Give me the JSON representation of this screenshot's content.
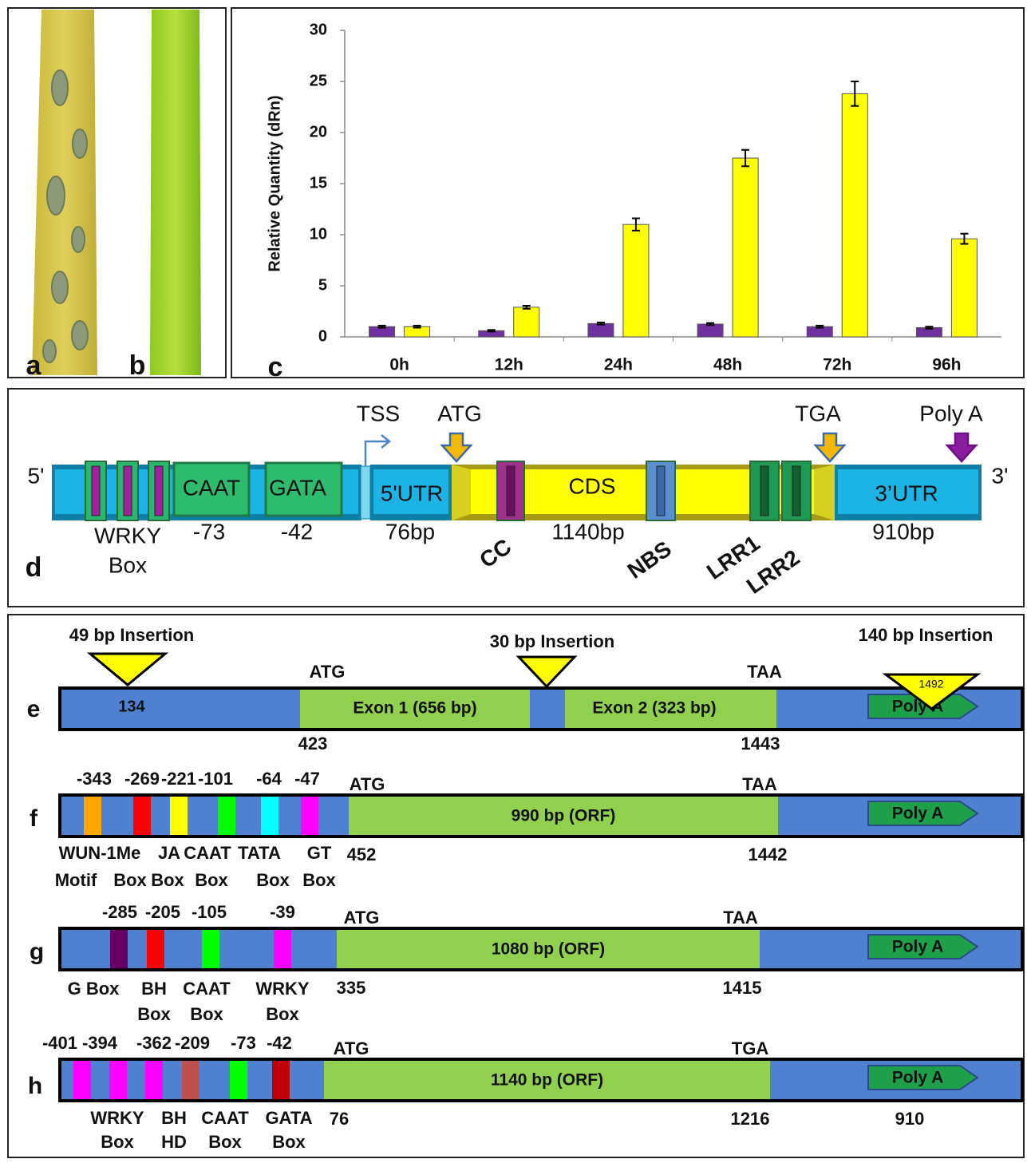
{
  "chart_data": {
    "type": "bar",
    "ylabel": "Relative Quantity (dRn)",
    "categories": [
      "0h",
      "12h",
      "24h",
      "48h",
      "72h",
      "96h"
    ],
    "series": [
      {
        "color": "#7030a0",
        "values": [
          1.0,
          0.6,
          1.3,
          1.25,
          1.0,
          0.9
        ],
        "errors": [
          0.1,
          0.08,
          0.1,
          0.1,
          0.1,
          0.1
        ]
      },
      {
        "color": "#ffff00",
        "values": [
          1.0,
          2.9,
          11.0,
          17.5,
          23.8,
          9.6
        ],
        "errors": [
          0.1,
          0.15,
          0.6,
          0.8,
          1.2,
          0.5
        ]
      }
    ],
    "ylim": [
      0,
      30
    ],
    "yticks": [
      0,
      5,
      10,
      15,
      20,
      25,
      30
    ],
    "grid": false
  },
  "panel_labels": {
    "a": "a",
    "b": "b",
    "c": "c",
    "d": "d",
    "e": "e",
    "f": "f",
    "g": "g",
    "h": "h"
  },
  "panel_d": {
    "end5": "5'",
    "end3": "3'",
    "tss": "TSS",
    "atg": "ATG",
    "tga": "TGA",
    "polya": "Poly A",
    "caat": "CAAT",
    "gata": "GATA",
    "utr5": "5'UTR",
    "cds": "CDS",
    "utr3": "3’UTR",
    "wrky": [
      "WRKY",
      "Box"
    ],
    "pos_caat": "-73",
    "pos_gata": "-42",
    "len_utr5": "76bp",
    "len_cds": "1140bp",
    "len_utr3": "910bp",
    "cc": "CC",
    "nbs": "NBS",
    "lrr1": "LRR1",
    "lrr2": "LRR2"
  },
  "panel_e": {
    "insertions": [
      "49 bp Insertion",
      "30 bp Insertion",
      "140 bp Insertion"
    ],
    "atg": "ATG",
    "stop": "TAA",
    "pos_insertion1": "134",
    "exon1": "Exon 1 (656 bp)",
    "exon2": "Exon 2 (323 bp)",
    "pos_insertion3": "1492",
    "polya": "Poly A",
    "start": "423",
    "end": "1443"
  },
  "panel_f": {
    "motif_positions": [
      "-343",
      "-269",
      "-221",
      "-101",
      "-64",
      "-47"
    ],
    "atg": "ATG",
    "stop": "TAA",
    "orf": "990 bp (ORF)",
    "polya": "Poly A",
    "start": "452",
    "end": "1442",
    "motif_labels": [
      [
        "WUN-1Me",
        "JA",
        "CAAT",
        "TATA",
        "GT"
      ],
      [
        "Motif",
        "Box",
        "Box",
        "Box",
        "Box",
        "Box"
      ]
    ]
  },
  "panel_g": {
    "motif_positions": [
      "-285",
      "-205",
      "-105",
      "-39"
    ],
    "atg": "ATG",
    "stop": "TAA",
    "orf": "1080 bp (ORF)",
    "polya": "Poly A",
    "start": "335",
    "end": "1415",
    "motif_labels": [
      [
        "G Box",
        "BH",
        "CAAT",
        "WRKY"
      ],
      [
        "Box",
        "Box",
        "Box"
      ]
    ]
  },
  "panel_h": {
    "motif_positions": [
      "-401",
      "-394",
      "-362",
      "-209",
      "-73",
      "-42"
    ],
    "atg": "ATG",
    "stop": "TGA",
    "orf": "1140 bp (ORF)",
    "polya": "Poly A",
    "start": "76",
    "end": "1216",
    "utr3": "910",
    "motif_labels": [
      [
        "WRKY",
        "BH",
        "CAAT",
        "GATA"
      ],
      [
        "Box",
        "HD",
        "Box",
        "Box"
      ]
    ]
  }
}
